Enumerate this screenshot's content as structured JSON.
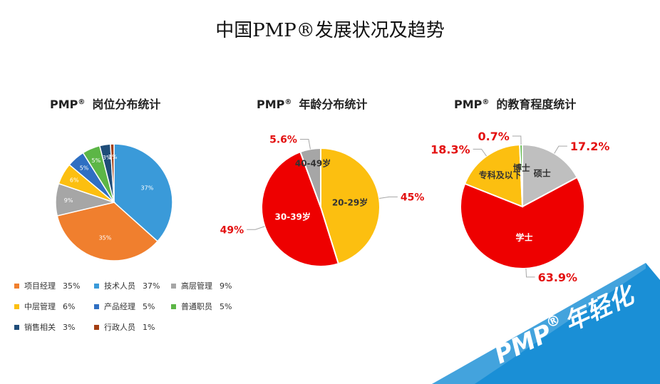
{
  "page": {
    "title": "中国PMP®发展状况及趋势"
  },
  "banner": {
    "text": "PMP",
    "sup": "®",
    "suffix": "年轻化",
    "color": "#1a8fd6"
  },
  "chart_data": [
    {
      "id": "position",
      "type": "pie",
      "title": "PMP® 岗位分布统计",
      "title_main": "PMP",
      "title_sup": "®",
      "title_rest": "岗位分布统计",
      "slices": [
        {
          "label": "技术人员",
          "value": 37,
          "text": "37%",
          "color": "#3a9ad9"
        },
        {
          "label": "项目经理",
          "value": 35,
          "text": "35%",
          "color": "#f07f2e"
        },
        {
          "label": "高层管理",
          "value": 9,
          "text": "9%",
          "color": "#a6a6a6"
        },
        {
          "label": "中层管理",
          "value": 6,
          "text": "6%",
          "color": "#fcbf10"
        },
        {
          "label": "产品经理",
          "value": 5,
          "text": "5%",
          "color": "#2f6fc2"
        },
        {
          "label": "普通职员",
          "value": 5,
          "text": "5%",
          "color": "#5cb646"
        },
        {
          "label": "销售相关",
          "value": 3,
          "text": "3%",
          "color": "#1f4d79"
        },
        {
          "label": "行政人员",
          "value": 1,
          "text": "1%",
          "color": "#a33e12"
        }
      ],
      "legend": [
        {
          "label": "项目经理",
          "value": "35%",
          "color": "#f07f2e"
        },
        {
          "label": "技术人员",
          "value": "37%",
          "color": "#3a9ad9"
        },
        {
          "label": "高层管理",
          "value": "9%",
          "color": "#a6a6a6"
        },
        {
          "label": "中层管理",
          "value": "6%",
          "color": "#fcbf10"
        },
        {
          "label": "产品经理",
          "value": "5%",
          "color": "#2f6fc2"
        },
        {
          "label": "普通职员",
          "value": "5%",
          "color": "#5cb646"
        },
        {
          "label": "销售相关",
          "value": "3%",
          "color": "#1f4d79"
        },
        {
          "label": "行政人员",
          "value": "1%",
          "color": "#a33e12"
        }
      ]
    },
    {
      "id": "age",
      "type": "pie",
      "title": "PMP® 年龄分布统计",
      "title_main": "PMP",
      "title_sup": "®",
      "title_rest": "年龄分布统计",
      "slices": [
        {
          "label": "20-29岁",
          "value": 45,
          "text": "45%",
          "color": "#fcbf10"
        },
        {
          "label": "30-39岁",
          "value": 49,
          "text": "49%",
          "color": "#ee0000"
        },
        {
          "label": "40-49岁",
          "value": 5.6,
          "text": "5.6%",
          "color": "#a6a6a6"
        }
      ]
    },
    {
      "id": "education",
      "type": "pie",
      "title": "PMP® 的教育程度统计",
      "title_main": "PMP",
      "title_sup": "®",
      "title_rest": "的教育程度统计",
      "slices": [
        {
          "label": "硕士",
          "value": 17.2,
          "text": "17.2%",
          "color": "#bfbfbf"
        },
        {
          "label": "学士",
          "value": 63.9,
          "text": "63.9%",
          "color": "#ee0000"
        },
        {
          "label": "专科及以下",
          "value": 18.3,
          "text": "18.3%",
          "color": "#fcbf10"
        },
        {
          "label": "博士",
          "value": 0.7,
          "text": "0.7%",
          "color": "#5cb646"
        }
      ]
    }
  ]
}
